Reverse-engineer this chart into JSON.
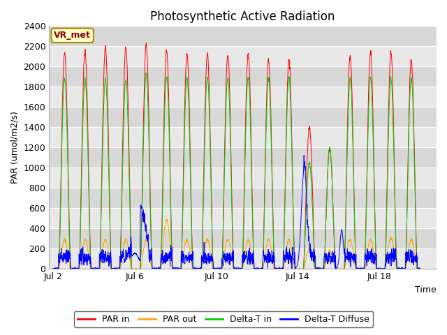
{
  "title": "Photosynthetic Active Radiation",
  "ylabel": "PAR (umol/m2/s)",
  "xlabel": "Time",
  "annotation": "VR_met",
  "ylim": [
    0,
    2400
  ],
  "ytick_values": [
    0,
    200,
    400,
    600,
    800,
    1000,
    1200,
    1400,
    1600,
    1800,
    2000,
    2200,
    2400
  ],
  "xtick_positions": [
    0,
    4,
    8,
    12,
    16
  ],
  "xtick_labels": [
    "Jul 2",
    "Jul 6",
    "Jul 10",
    "Jul 14",
    "Jul 18"
  ],
  "xlim": [
    -0.2,
    18.8
  ],
  "legend_entries": [
    "PAR in",
    "PAR out",
    "Delta-T in",
    "Delta-T Diffuse"
  ],
  "legend_colors": [
    "#ff0000",
    "#ffa500",
    "#00cc00",
    "#0000ff"
  ],
  "plot_bg_color": "#e8e8e8",
  "band_colors": [
    "#e8e8e8",
    "#d8d8d8"
  ],
  "title_fontsize": 12,
  "label_fontsize": 9,
  "tick_fontsize": 9
}
